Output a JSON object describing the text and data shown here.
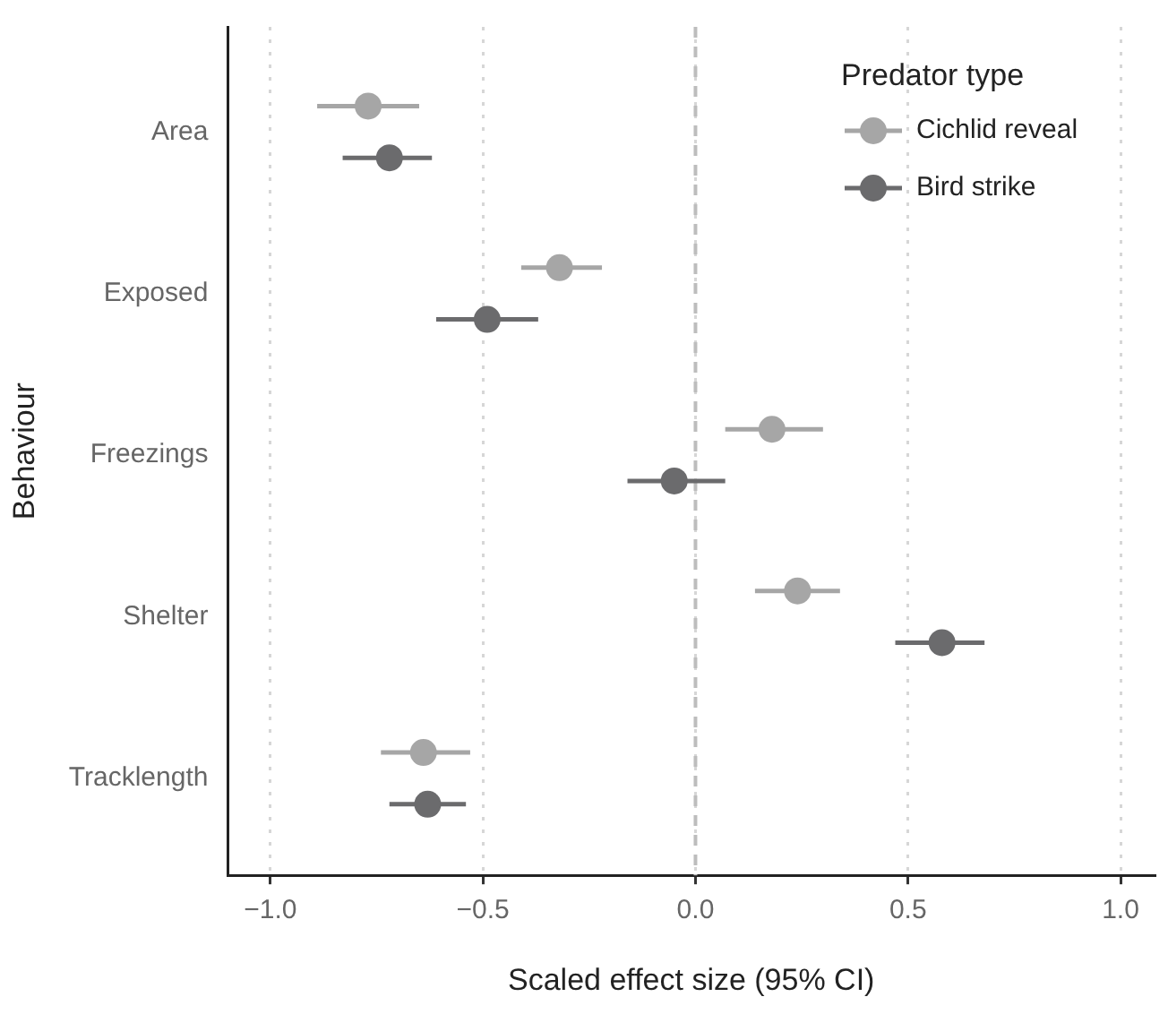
{
  "chart_data": {
    "type": "scatter",
    "orientation": "horizontal",
    "xlabel": "Scaled effect size (95% CI)",
    "ylabel": "Behaviour",
    "legend_title": "Predator type",
    "categories": [
      "Area",
      "Exposed",
      "Freezings",
      "Shelter",
      "Tracklength"
    ],
    "series": [
      {
        "name": "Cichlid reveal",
        "color": "#a6a6a6",
        "values": [
          -0.77,
          -0.32,
          0.18,
          0.24,
          -0.64
        ],
        "errors": [
          [
            -0.89,
            -0.65
          ],
          [
            -0.41,
            -0.22
          ],
          [
            0.07,
            0.3
          ],
          [
            0.14,
            0.34
          ],
          [
            -0.74,
            -0.53
          ]
        ]
      },
      {
        "name": "Bird strike",
        "color": "#6b6b6d",
        "values": [
          -0.72,
          -0.49,
          -0.05,
          0.58,
          -0.63
        ],
        "errors": [
          [
            -0.83,
            -0.62
          ],
          [
            -0.61,
            -0.37
          ],
          [
            -0.16,
            0.07
          ],
          [
            0.47,
            0.68
          ],
          [
            -0.72,
            -0.54
          ]
        ]
      }
    ],
    "xlim": [
      -1.1,
      1.08
    ],
    "xticks": [
      {
        "value": -1,
        "label": "−1.0"
      },
      {
        "value": -0.5,
        "label": "−0.5"
      },
      {
        "value": 0,
        "label": "0.0"
      },
      {
        "value": 0.5,
        "label": "0.5"
      },
      {
        "value": 1,
        "label": "1.0"
      }
    ],
    "grid": "x",
    "marker": "circle",
    "legend": "top right",
    "ref_lines": [
      {
        "axis": "x",
        "value": 0,
        "color": "#bdbdbd",
        "line_style": "dashed"
      }
    ]
  }
}
